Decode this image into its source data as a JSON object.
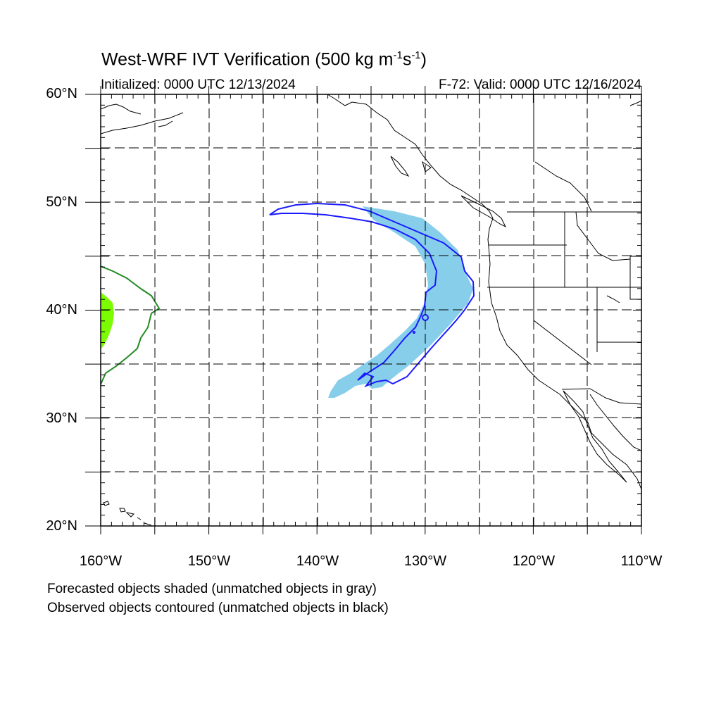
{
  "title": {
    "main": "West-WRF IVT Verification (500 kg m",
    "sup1": "-1",
    "mid": "s",
    "sup2": "-1",
    "end": ")"
  },
  "subtitle": {
    "initialized": "Initialized: 0000 UTC 12/13/2024",
    "valid": "F-72: Valid: 0000 UTC 12/16/2024"
  },
  "lat_labels": [
    "60°N",
    "50°N",
    "40°N",
    "30°N",
    "20°N"
  ],
  "lon_labels": [
    "160°W",
    "150°W",
    "140°W",
    "130°W",
    "120°W",
    "110°W"
  ],
  "captions": {
    "forecast": "Forecasted objects shaded (unmatched objects in gray)",
    "observed": "Observed objects contoured (unmatched objects in black)"
  },
  "colors": {
    "matched_forecast_shade_1": "#87ceeb",
    "matched_observed_contour_1": "#1a1aff",
    "matched_forecast_shade_2": "#7cfc00",
    "matched_observed_contour_2": "#228b22",
    "coastline": "#000000"
  },
  "map_extent": {
    "lon_min": -160,
    "lon_max": -110,
    "lat_min": 20,
    "lat_max": 60
  }
}
